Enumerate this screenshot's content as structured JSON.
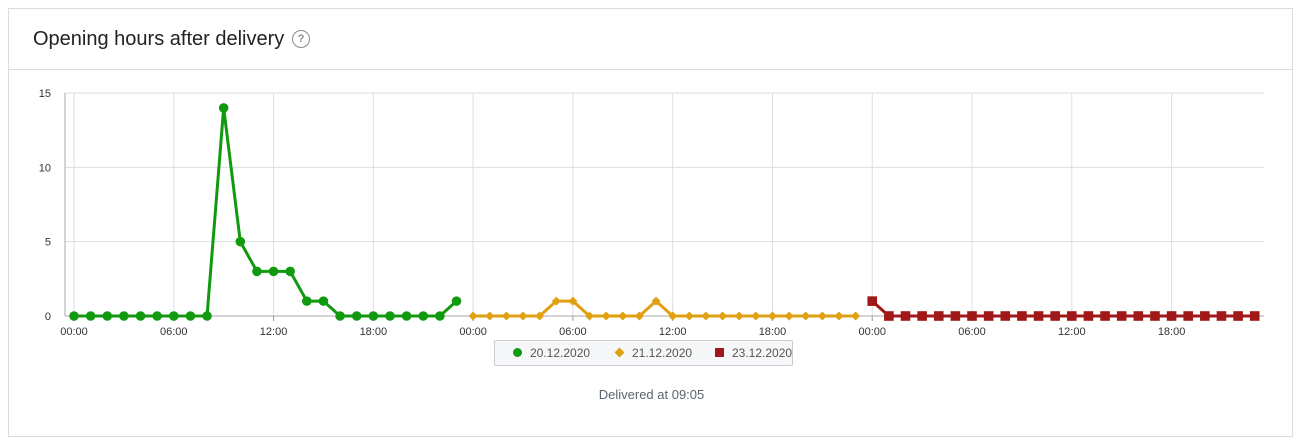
{
  "panel": {
    "title": "Opening hours after delivery",
    "help_icon": "question-circle-icon",
    "footnote": "Delivered at 09:05"
  },
  "chart_data": {
    "type": "line",
    "ylim": [
      0,
      15
    ],
    "y_ticks": [
      "0",
      "5",
      "10",
      "15"
    ],
    "x_tick_labels": [
      "00:00",
      "06:00",
      "12:00",
      "18:00",
      "00:00",
      "06:00",
      "12:00",
      "18:00",
      "00:00",
      "06:00",
      "12:00",
      "18:00"
    ],
    "grid": true,
    "legend_position": "bottom-center",
    "series": [
      {
        "name": "20.12.2020",
        "color": "#119a0f",
        "marker": "circle",
        "values": [
          0,
          0,
          0,
          0,
          0,
          0,
          0,
          0,
          0,
          14,
          5,
          3,
          3,
          3,
          1,
          1,
          0,
          0,
          0,
          0,
          0,
          0,
          0,
          1
        ]
      },
      {
        "name": "21.12.2020",
        "color": "#e0a010",
        "marker": "diamond",
        "values": [
          0,
          0,
          0,
          0,
          0,
          1,
          1,
          0,
          0,
          0,
          0,
          1,
          0,
          0,
          0,
          0,
          0,
          0,
          0,
          0,
          0,
          0,
          0,
          0
        ]
      },
      {
        "name": "23.12.2020",
        "color": "#a01818",
        "marker": "square",
        "values": [
          1,
          0,
          0,
          0,
          0,
          0,
          0,
          0,
          0,
          0,
          0,
          0,
          0,
          0,
          0,
          0,
          0,
          0,
          0,
          0,
          0,
          0,
          0,
          0
        ]
      }
    ]
  }
}
